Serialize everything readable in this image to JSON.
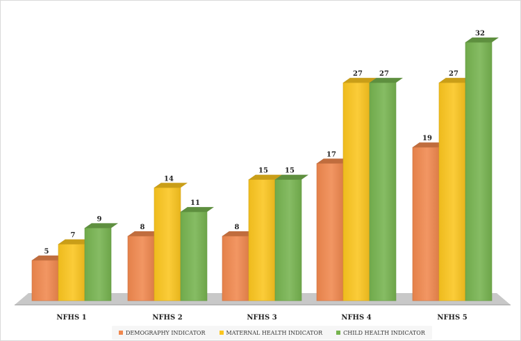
{
  "chart_data": {
    "type": "bar",
    "title": "",
    "xlabel": "",
    "ylabel": "",
    "ylim": [
      0,
      32
    ],
    "grid": false,
    "legend_position": "bottom",
    "categories": [
      "NFHS 1",
      "NFHS 2",
      "NFHS 3",
      "NFHS 4",
      "NFHS 5"
    ],
    "series": [
      {
        "name": "DEMOGRAPHY INDICATOR",
        "color": "#f0884e",
        "values": [
          5,
          8,
          8,
          17,
          19
        ]
      },
      {
        "name": "MATERNAL HEALTH INDICATOR",
        "color": "#fbc51e",
        "values": [
          7,
          14,
          15,
          27,
          27
        ]
      },
      {
        "name": "CHILD HEALTH INDICATOR",
        "color": "#76b34f",
        "values": [
          9,
          11,
          15,
          27,
          32
        ]
      }
    ]
  }
}
